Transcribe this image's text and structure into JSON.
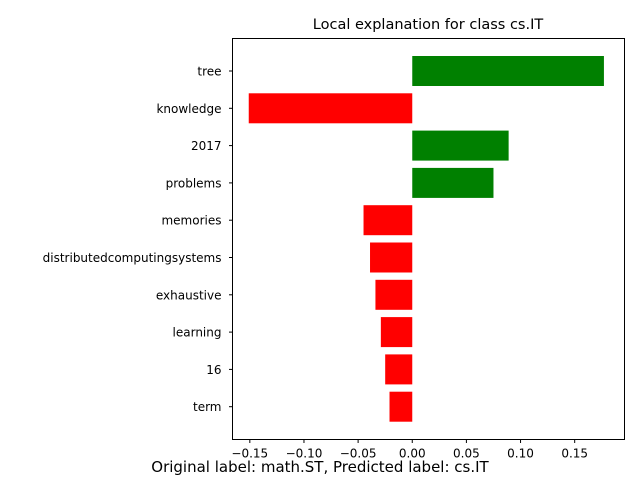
{
  "chart_data": {
    "type": "bar",
    "orientation": "horizontal",
    "title": "Local explanation for class cs.IT",
    "xlabel": "",
    "ylabel": "",
    "categories": [
      "tree",
      "knowledge",
      "2017",
      "problems",
      "memories",
      "distributedcomputingsystems",
      "exhaustive",
      "learning",
      "16",
      "term"
    ],
    "values": [
      0.177,
      -0.151,
      0.089,
      0.075,
      -0.045,
      -0.039,
      -0.034,
      -0.029,
      -0.025,
      -0.021
    ],
    "xlim": [
      -0.166,
      0.196
    ],
    "xticks": [
      -0.15,
      -0.1,
      -0.05,
      0.0,
      0.05,
      0.1,
      0.15
    ],
    "xtick_labels": [
      "−0.15",
      "−0.10",
      "−0.05",
      "0.00",
      "0.05",
      "0.10",
      "0.15"
    ],
    "positive_color": "#008000",
    "negative_color": "#ff0000",
    "grid": false
  },
  "caption": "Original label: math.ST, Predicted label: cs.IT"
}
